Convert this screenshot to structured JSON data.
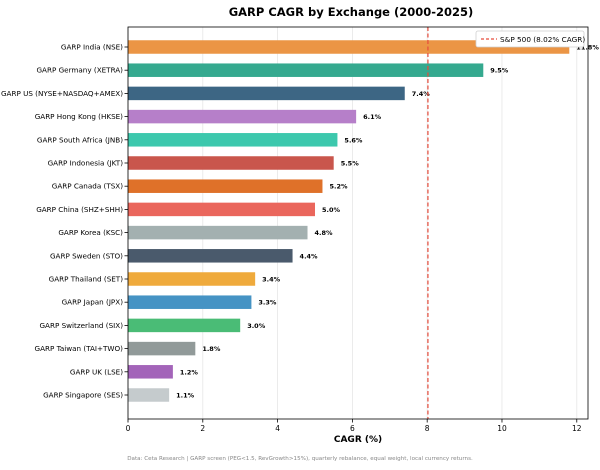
{
  "chart_data": {
    "type": "bar",
    "orientation": "horizontal",
    "title": "GARP CAGR by Exchange (2000-2025)",
    "xlabel": "CAGR (%)",
    "ylabel": "",
    "xlim": [
      0,
      12.3
    ],
    "xticks": [
      0,
      2,
      4,
      6,
      8,
      10,
      12
    ],
    "grid": "vertical",
    "legend_position": "top-right",
    "reference_line": {
      "label": "S&P 500 (8.02% CAGR)",
      "value": 8.02,
      "color": "#e74c3c"
    },
    "bars": [
      {
        "category": "GARP India (NSE)",
        "value": 11.8,
        "label": "11.8%",
        "color": "#eb9545"
      },
      {
        "category": "GARP Germany (XETRA)",
        "value": 9.5,
        "label": "9.5%",
        "color": "#35a98f"
      },
      {
        "category": "GARP US (NYSE+NASDAQ+AMEX)",
        "value": 7.4,
        "label": "7.4%",
        "color": "#3d6684"
      },
      {
        "category": "GARP Hong Kong (HKSE)",
        "value": 6.1,
        "label": "6.1%",
        "color": "#b67fc9"
      },
      {
        "category": "GARP South Africa (JNB)",
        "value": 5.6,
        "label": "5.6%",
        "color": "#3cc8ad"
      },
      {
        "category": "GARP Indonesia (JKT)",
        "value": 5.5,
        "label": "5.5%",
        "color": "#c9564c"
      },
      {
        "category": "GARP Canada (TSX)",
        "value": 5.2,
        "label": "5.2%",
        "color": "#df7129"
      },
      {
        "category": "GARP China (SHZ+SHH)",
        "value": 5.0,
        "label": "5.0%",
        "color": "#ea665c"
      },
      {
        "category": "GARP Korea (KSC)",
        "value": 4.8,
        "label": "4.8%",
        "color": "#a3b0b0"
      },
      {
        "category": "GARP Sweden (STO)",
        "value": 4.4,
        "label": "4.4%",
        "color": "#4a5a6c"
      },
      {
        "category": "GARP Thailand (SET)",
        "value": 3.4,
        "label": "3.4%",
        "color": "#efaa3c"
      },
      {
        "category": "GARP Japan (JPX)",
        "value": 3.3,
        "label": "3.3%",
        "color": "#4593c4"
      },
      {
        "category": "GARP Switzerland (SIX)",
        "value": 3.0,
        "label": "3.0%",
        "color": "#4abc76"
      },
      {
        "category": "GARP Taiwan (TAI+TWO)",
        "value": 1.8,
        "label": "1.8%",
        "color": "#919a99"
      },
      {
        "category": "GARP UK (LSE)",
        "value": 1.2,
        "label": "1.2%",
        "color": "#a364b9"
      },
      {
        "category": "GARP Singapore (SES)",
        "value": 1.1,
        "label": "1.1%",
        "color": "#c5cbcd"
      }
    ],
    "footnote": "Data: Ceta Research | GARP screen (PEG<1.5, RevGrowth>15%), quarterly rebalance, equal weight, local currency returns."
  }
}
